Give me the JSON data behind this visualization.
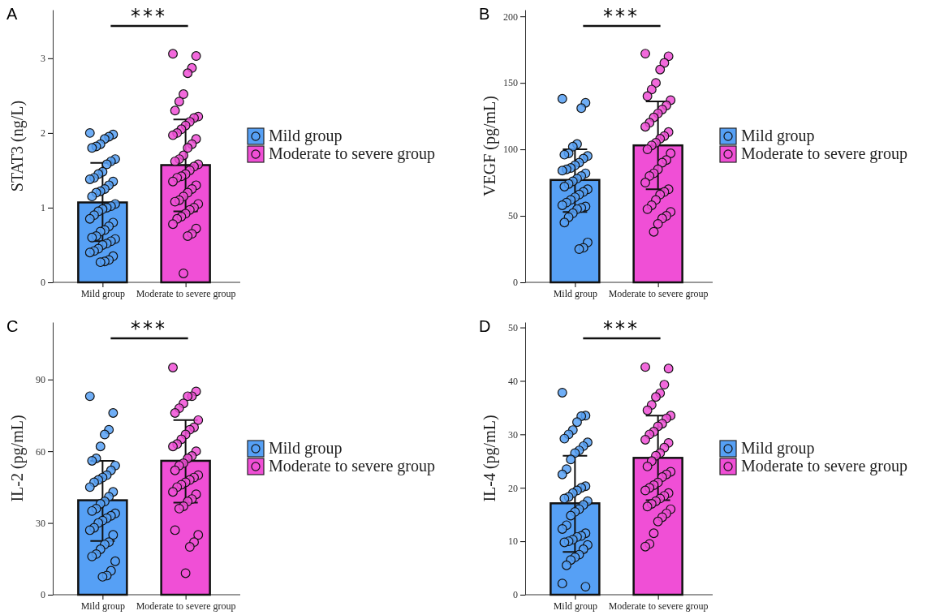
{
  "chart_data": [
    {
      "type": "bar",
      "title": "A",
      "ylabel": "STAT3 (ng/L)",
      "categories": [
        "Mild group",
        "Moderate to severe group"
      ],
      "ylim": [
        0,
        3.65
      ],
      "yticks": [
        0,
        1,
        2,
        3
      ],
      "legend": "right",
      "marker": "circle",
      "annotations": [
        "***"
      ],
      "series": [
        {
          "colors": [
            "#56a0f5",
            "#f04fd6"
          ],
          "values": [
            1.07,
            1.57
          ],
          "errors": [
            [
              0.55,
              1.6
            ],
            [
              0.95,
              2.18
            ]
          ]
        },
        {
          "type": "scatter",
          "name": "Mild group",
          "color": "#56a0f5",
          "x": [
            "Mild group",
            "Mild group",
            "Mild group",
            "Mild group",
            "Mild group",
            "Mild group",
            "Mild group",
            "Mild group",
            "Mild group",
            "Mild group",
            "Mild group",
            "Mild group",
            "Mild group",
            "Mild group",
            "Mild group",
            "Mild group",
            "Mild group",
            "Mild group",
            "Mild group",
            "Mild group",
            "Mild group",
            "Mild group",
            "Mild group",
            "Mild group",
            "Mild group",
            "Mild group",
            "Mild group",
            "Mild group",
            "Mild group",
            "Mild group",
            "Mild group",
            "Mild group",
            "Mild group",
            "Mild group",
            "Mild group",
            "Mild group",
            "Mild group",
            "Mild group",
            "Mild group",
            "Mild group",
            "Mild group",
            "Mild group",
            "Mild group",
            "Mild group"
          ],
          "values": [
            2.0,
            1.98,
            1.95,
            1.92,
            1.85,
            1.82,
            1.8,
            1.65,
            1.62,
            1.58,
            1.48,
            1.45,
            1.4,
            1.38,
            1.35,
            1.3,
            1.25,
            1.22,
            1.2,
            1.15,
            1.05,
            1.02,
            1.0,
            0.98,
            0.95,
            0.9,
            0.85,
            0.8,
            0.75,
            0.7,
            0.68,
            0.62,
            0.6,
            0.58,
            0.55,
            0.52,
            0.5,
            0.45,
            0.42,
            0.4,
            0.35,
            0.3,
            0.28,
            0.27
          ]
        },
        {
          "type": "scatter",
          "name": "Moderate to severe group",
          "color": "#f04fd6",
          "x": [
            "Moderate to severe group",
            "Moderate to severe group",
            "Moderate to severe group",
            "Moderate to severe group",
            "Moderate to severe group",
            "Moderate to severe group",
            "Moderate to severe group",
            "Moderate to severe group",
            "Moderate to severe group",
            "Moderate to severe group",
            "Moderate to severe group",
            "Moderate to severe group",
            "Moderate to severe group",
            "Moderate to severe group",
            "Moderate to severe group",
            "Moderate to severe group",
            "Moderate to severe group",
            "Moderate to severe group",
            "Moderate to severe group",
            "Moderate to severe group",
            "Moderate to severe group",
            "Moderate to severe group",
            "Moderate to severe group",
            "Moderate to severe group",
            "Moderate to severe group",
            "Moderate to severe group",
            "Moderate to severe group",
            "Moderate to severe group",
            "Moderate to severe group",
            "Moderate to severe group",
            "Moderate to severe group",
            "Moderate to severe group",
            "Moderate to severe group",
            "Moderate to severe group",
            "Moderate to severe group",
            "Moderate to severe group",
            "Moderate to severe group",
            "Moderate to severe group",
            "Moderate to severe group",
            "Moderate to severe group",
            "Moderate to severe group",
            "Moderate to severe group",
            "Moderate to severe group",
            "Moderate to severe group"
          ],
          "values": [
            3.06,
            3.03,
            2.87,
            2.8,
            2.52,
            2.42,
            2.3,
            2.22,
            2.2,
            2.15,
            2.1,
            2.05,
            2.0,
            1.97,
            1.92,
            1.85,
            1.8,
            1.7,
            1.65,
            1.62,
            1.58,
            1.55,
            1.5,
            1.45,
            1.42,
            1.4,
            1.35,
            1.3,
            1.25,
            1.2,
            1.15,
            1.1,
            1.08,
            1.05,
            1.0,
            0.97,
            0.92,
            0.88,
            0.85,
            0.78,
            0.72,
            0.65,
            0.62,
            0.12
          ]
        }
      ]
    },
    {
      "type": "bar",
      "title": "B",
      "ylabel": "VEGF (pg/mL)",
      "categories": [
        "Mild group",
        "Moderate to severe group"
      ],
      "ylim": [
        0,
        205
      ],
      "yticks": [
        0,
        50,
        100,
        150,
        200
      ],
      "legend": "right",
      "marker": "circle",
      "annotations": [
        "***"
      ],
      "series": [
        {
          "colors": [
            "#56a0f5",
            "#f04fd6"
          ],
          "values": [
            77,
            103
          ],
          "errors": [
            [
              53,
              100
            ],
            [
              70,
              136
            ]
          ]
        },
        {
          "type": "scatter",
          "name": "Mild group",
          "color": "#56a0f5",
          "x": [
            "Mild group",
            "Mild group",
            "Mild group",
            "Mild group",
            "Mild group",
            "Mild group",
            "Mild group",
            "Mild group",
            "Mild group",
            "Mild group",
            "Mild group",
            "Mild group",
            "Mild group",
            "Mild group",
            "Mild group",
            "Mild group",
            "Mild group",
            "Mild group",
            "Mild group",
            "Mild group",
            "Mild group",
            "Mild group",
            "Mild group",
            "Mild group",
            "Mild group",
            "Mild group",
            "Mild group",
            "Mild group",
            "Mild group",
            "Mild group",
            "Mild group",
            "Mild group",
            "Mild group",
            "Mild group",
            "Mild group",
            "Mild group"
          ],
          "values": [
            138,
            135,
            131,
            104,
            102,
            97,
            96,
            95,
            93,
            90,
            88,
            86,
            85,
            84,
            82,
            80,
            78,
            76,
            74,
            72,
            70,
            68,
            66,
            64,
            62,
            60,
            58,
            57,
            56,
            55,
            52,
            49,
            45,
            30,
            26,
            25
          ]
        },
        {
          "type": "scatter",
          "name": "Moderate to severe group",
          "color": "#f04fd6",
          "x": [
            "Moderate to severe group",
            "Moderate to severe group",
            "Moderate to severe group",
            "Moderate to severe group",
            "Moderate to severe group",
            "Moderate to severe group",
            "Moderate to severe group",
            "Moderate to severe group",
            "Moderate to severe group",
            "Moderate to severe group",
            "Moderate to severe group",
            "Moderate to severe group",
            "Moderate to severe group",
            "Moderate to severe group",
            "Moderate to severe group",
            "Moderate to severe group",
            "Moderate to severe group",
            "Moderate to severe group",
            "Moderate to severe group",
            "Moderate to severe group",
            "Moderate to severe group",
            "Moderate to severe group",
            "Moderate to severe group",
            "Moderate to severe group",
            "Moderate to severe group",
            "Moderate to severe group",
            "Moderate to severe group",
            "Moderate to severe group",
            "Moderate to severe group",
            "Moderate to severe group",
            "Moderate to severe group",
            "Moderate to severe group",
            "Moderate to severe group",
            "Moderate to severe group",
            "Moderate to severe group",
            "Moderate to severe group",
            "Moderate to severe group",
            "Moderate to severe group"
          ],
          "values": [
            172,
            170,
            165,
            160,
            150,
            145,
            140,
            137,
            133,
            130,
            127,
            124,
            120,
            117,
            113,
            110,
            108,
            105,
            103,
            100,
            97,
            92,
            90,
            85,
            82,
            80,
            75,
            70,
            68,
            66,
            62,
            58,
            55,
            53,
            50,
            48,
            44,
            38
          ]
        }
      ]
    },
    {
      "type": "bar",
      "title": "C",
      "ylabel": "IL-2 (pg/mL)",
      "categories": [
        "Mild group",
        "Moderate to severe group"
      ],
      "ylim": [
        0,
        114
      ],
      "yticks": [
        0,
        30,
        60,
        90
      ],
      "legend": "right",
      "marker": "circle",
      "annotations": [
        "***"
      ],
      "series": [
        {
          "colors": [
            "#56a0f5",
            "#f04fd6"
          ],
          "values": [
            39.5,
            56
          ],
          "errors": [
            [
              22.5,
              56
            ],
            [
              38.5,
              73
            ]
          ]
        },
        {
          "type": "scatter",
          "name": "Mild group",
          "color": "#56a0f5",
          "x": [
            "Mild group",
            "Mild group",
            "Mild group",
            "Mild group",
            "Mild group",
            "Mild group",
            "Mild group",
            "Mild group",
            "Mild group",
            "Mild group",
            "Mild group",
            "Mild group",
            "Mild group",
            "Mild group",
            "Mild group",
            "Mild group",
            "Mild group",
            "Mild group",
            "Mild group",
            "Mild group",
            "Mild group",
            "Mild group",
            "Mild group",
            "Mild group",
            "Mild group",
            "Mild group",
            "Mild group",
            "Mild group",
            "Mild group",
            "Mild group",
            "Mild group",
            "Mild group",
            "Mild group",
            "Mild group",
            "Mild group",
            "Mild group",
            "Mild group"
          ],
          "values": [
            83,
            76,
            69,
            67,
            62,
            57,
            56,
            54,
            52,
            50,
            49,
            48,
            47,
            45,
            43,
            41,
            39,
            38,
            36,
            35,
            34,
            33,
            32,
            31,
            30,
            28,
            27,
            25,
            22,
            21,
            19,
            17,
            16,
            14,
            10,
            8,
            7.5
          ]
        },
        {
          "type": "scatter",
          "name": "Moderate to severe group",
          "color": "#f04fd6",
          "x": [
            "Moderate to severe group",
            "Moderate to severe group",
            "Moderate to severe group",
            "Moderate to severe group",
            "Moderate to severe group",
            "Moderate to severe group",
            "Moderate to severe group",
            "Moderate to severe group",
            "Moderate to severe group",
            "Moderate to severe group",
            "Moderate to severe group",
            "Moderate to severe group",
            "Moderate to severe group",
            "Moderate to severe group",
            "Moderate to severe group",
            "Moderate to severe group",
            "Moderate to severe group",
            "Moderate to severe group",
            "Moderate to severe group",
            "Moderate to severe group",
            "Moderate to severe group",
            "Moderate to severe group",
            "Moderate to severe group",
            "Moderate to severe group",
            "Moderate to severe group",
            "Moderate to severe group",
            "Moderate to severe group",
            "Moderate to severe group",
            "Moderate to severe group",
            "Moderate to severe group",
            "Moderate to severe group",
            "Moderate to severe group",
            "Moderate to severe group",
            "Moderate to severe group",
            "Moderate to severe group",
            "Moderate to severe group",
            "Moderate to severe group"
          ],
          "values": [
            95,
            85,
            83,
            83,
            80,
            78,
            76,
            73,
            70,
            69,
            67,
            65,
            63,
            62,
            60,
            58,
            57,
            55,
            54,
            52,
            50,
            49,
            48,
            47,
            46,
            45,
            43,
            42,
            40,
            39,
            37,
            36,
            27,
            25,
            22,
            20,
            9
          ]
        }
      ]
    },
    {
      "type": "bar",
      "title": "D",
      "ylabel": "IL-4 (pg/mL)",
      "categories": [
        "Mild group",
        "Moderate to severe group"
      ],
      "ylim": [
        0,
        51
      ],
      "yticks": [
        0,
        10,
        20,
        30,
        40,
        50
      ],
      "legend": "right",
      "marker": "circle",
      "annotations": [
        "***"
      ],
      "series": [
        {
          "colors": [
            "#56a0f5",
            "#f04fd6"
          ],
          "values": [
            17.1,
            25.6
          ],
          "errors": [
            [
              8,
              26
            ],
            [
              17.7,
              33.5
            ]
          ]
        },
        {
          "type": "scatter",
          "name": "Mild group",
          "color": "#56a0f5",
          "x": [
            "Mild group",
            "Mild group",
            "Mild group",
            "Mild group",
            "Mild group",
            "Mild group",
            "Mild group",
            "Mild group",
            "Mild group",
            "Mild group",
            "Mild group",
            "Mild group",
            "Mild group",
            "Mild group",
            "Mild group",
            "Mild group",
            "Mild group",
            "Mild group",
            "Mild group",
            "Mild group",
            "Mild group",
            "Mild group",
            "Mild group",
            "Mild group",
            "Mild group",
            "Mild group",
            "Mild group",
            "Mild group",
            "Mild group",
            "Mild group",
            "Mild group",
            "Mild group",
            "Mild group",
            "Mild group",
            "Mild group",
            "Mild group",
            "Mild group",
            "Mild group",
            "Mild group",
            "Mild group",
            "Mild group"
          ],
          "values": [
            37.8,
            33.5,
            33.4,
            32.3,
            30.8,
            30,
            29.2,
            28.5,
            27.8,
            27,
            26.5,
            25.3,
            23.5,
            22.5,
            20.3,
            20,
            19.5,
            19,
            18.3,
            18,
            17.5,
            16.8,
            16,
            15.5,
            14.8,
            13,
            12.3,
            11.5,
            11,
            10.8,
            10.3,
            10,
            9.8,
            9.3,
            8.5,
            7.5,
            7,
            6.5,
            5.5,
            2.1,
            1.5
          ]
        },
        {
          "type": "scatter",
          "name": "Moderate to severe group",
          "color": "#f04fd6",
          "x": [
            "Moderate to severe group",
            "Moderate to severe group",
            "Moderate to severe group",
            "Moderate to severe group",
            "Moderate to severe group",
            "Moderate to severe group",
            "Moderate to severe group",
            "Moderate to severe group",
            "Moderate to severe group",
            "Moderate to severe group",
            "Moderate to severe group",
            "Moderate to severe group",
            "Moderate to severe group",
            "Moderate to severe group",
            "Moderate to severe group",
            "Moderate to severe group",
            "Moderate to severe group",
            "Moderate to severe group",
            "Moderate to severe group",
            "Moderate to severe group",
            "Moderate to severe group",
            "Moderate to severe group",
            "Moderate to severe group",
            "Moderate to severe group",
            "Moderate to severe group",
            "Moderate to severe group",
            "Moderate to severe group",
            "Moderate to severe group",
            "Moderate to severe group",
            "Moderate to severe group",
            "Moderate to severe group",
            "Moderate to severe group",
            "Moderate to severe group",
            "Moderate to severe group",
            "Moderate to severe group",
            "Moderate to severe group",
            "Moderate to severe group",
            "Moderate to severe group",
            "Moderate to severe group",
            "Moderate to severe group"
          ],
          "values": [
            42.6,
            42.3,
            39.3,
            37.7,
            37,
            35.5,
            34.5,
            33.5,
            33,
            32,
            31.5,
            30.5,
            30,
            29,
            28.4,
            27.5,
            26.5,
            26,
            25,
            24,
            23,
            22.5,
            22,
            21,
            20.5,
            20,
            19.5,
            19,
            18.5,
            18,
            17.5,
            17,
            16.5,
            16,
            15.2,
            14.5,
            13.7,
            11.5,
            9.5,
            9
          ]
        }
      ]
    }
  ]
}
